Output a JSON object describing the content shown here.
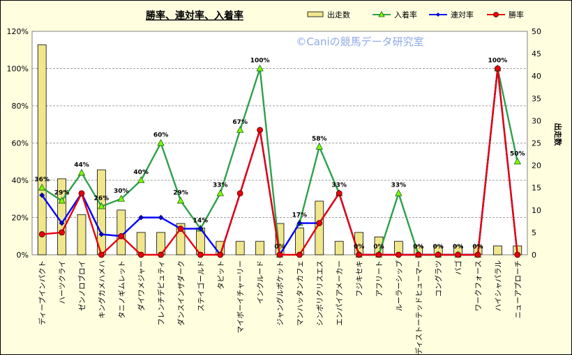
{
  "chart_data": {
    "type": "bar+line",
    "title": "勝率、連対率、入着率",
    "watermark": "©Caniの競馬データ研究室",
    "y_left": {
      "min": 0,
      "max": 120,
      "step": 20,
      "unit": "%"
    },
    "y_right": {
      "min": 0,
      "max": 50,
      "step": 5,
      "label": "出走数"
    },
    "categories": [
      "ディープインパクト",
      "ハーツクライ",
      "ゼンノロブロイ",
      "キングカメハメハ",
      "タニノギムレット",
      "ダイワメジャー",
      "フレンチデピュティ",
      "ダンスインザダーク",
      "ステイゴールド",
      "タピット",
      "マイボーイチャーリー",
      "インクルード",
      "ジャングルポケット",
      "マンハッタンカフェ",
      "シンボリクリスエス",
      "エンパイアメーカー",
      "フジキセキ",
      "アフリート",
      "ルーラーシップ",
      "ディストーテッドヒューマー",
      "コングラツ",
      "バゴ",
      "ワークフォース",
      "ハイシャパラル",
      "ニューアプローチ"
    ],
    "series": [
      {
        "name": "出走数",
        "type": "bar",
        "axis": "right",
        "color": "#F0E68C",
        "values": [
          47,
          17,
          9,
          19,
          10,
          5,
          5,
          7,
          6,
          3,
          3,
          3,
          7,
          6,
          12,
          3,
          5,
          4,
          3,
          2,
          2,
          2,
          2,
          2,
          2
        ]
      },
      {
        "name": "入着率",
        "type": "line",
        "axis": "left",
        "color": "#2EA04A",
        "marker": "triangle",
        "values": [
          36,
          29,
          44,
          26,
          30,
          40,
          60,
          29,
          14,
          33,
          67,
          100,
          0,
          17,
          58,
          33,
          0,
          0,
          33,
          0,
          0,
          0,
          0,
          100,
          50
        ]
      },
      {
        "name": "連対率",
        "type": "line",
        "axis": "left",
        "color": "#0000FF",
        "marker": "diamond",
        "values": [
          32,
          17,
          33,
          11,
          10,
          20,
          20,
          14,
          14,
          0,
          33,
          67,
          0,
          17,
          17,
          33,
          0,
          0,
          0,
          0,
          0,
          0,
          0,
          100,
          0
        ]
      },
      {
        "name": "勝率",
        "type": "line",
        "axis": "left",
        "color": "#E8000B",
        "marker": "circle",
        "values": [
          11,
          12,
          33,
          0,
          10,
          0,
          0,
          14,
          0,
          0,
          33,
          67,
          0,
          0,
          17,
          33,
          0,
          0,
          0,
          0,
          0,
          0,
          0,
          100,
          0
        ]
      }
    ],
    "data_labels_series": "入着率",
    "data_labels": [
      "36%",
      "29%",
      "44%",
      "26%",
      "30%",
      "40%",
      "60%",
      "29%",
      "14%",
      "33%",
      "67%",
      "100%",
      "0%",
      "17%",
      "58%",
      "33%",
      "0%",
      "0%",
      "33%",
      "0%",
      "0%",
      "0%",
      "0%",
      "100%",
      "50%"
    ],
    "grid": true,
    "legend": "top-right"
  }
}
